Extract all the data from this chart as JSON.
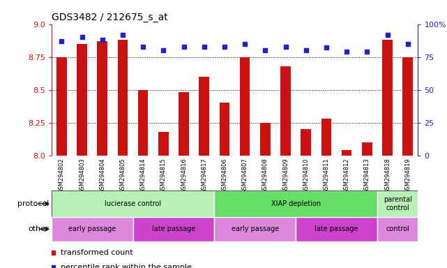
{
  "title": "GDS3482 / 212675_s_at",
  "samples": [
    "GSM294802",
    "GSM294803",
    "GSM294804",
    "GSM294805",
    "GSM294814",
    "GSM294815",
    "GSM294816",
    "GSM294817",
    "GSM294806",
    "GSM294807",
    "GSM294808",
    "GSM294809",
    "GSM294810",
    "GSM294811",
    "GSM294812",
    "GSM294813",
    "GSM294818",
    "GSM294819"
  ],
  "transformed_count": [
    8.75,
    8.85,
    8.87,
    8.88,
    8.5,
    8.18,
    8.48,
    8.6,
    8.4,
    8.75,
    8.25,
    8.68,
    8.2,
    8.28,
    8.04,
    8.1,
    8.88,
    8.75
  ],
  "percentile_rank": [
    87,
    90,
    88,
    92,
    83,
    80,
    83,
    83,
    83,
    85,
    80,
    83,
    80,
    82,
    79,
    79,
    92,
    85
  ],
  "ylim_left": [
    8.0,
    9.0
  ],
  "ylim_right": [
    0,
    100
  ],
  "yticks_left": [
    8.0,
    8.25,
    8.5,
    8.75,
    9.0
  ],
  "yticks_right": [
    0,
    25,
    50,
    75,
    100
  ],
  "grid_values": [
    8.25,
    8.5,
    8.75
  ],
  "protocol_groups": [
    {
      "label": "lucierase control",
      "start": 0,
      "end": 8,
      "color": "#b8f0b8"
    },
    {
      "label": "XIAP depletion",
      "start": 8,
      "end": 16,
      "color": "#66dd66"
    },
    {
      "label": "parental\ncontrol",
      "start": 16,
      "end": 18,
      "color": "#b8f0b8"
    }
  ],
  "other_groups": [
    {
      "label": "early passage",
      "start": 0,
      "end": 4,
      "color": "#dd88dd"
    },
    {
      "label": "late passage",
      "start": 4,
      "end": 8,
      "color": "#cc44cc"
    },
    {
      "label": "early passage",
      "start": 8,
      "end": 12,
      "color": "#dd88dd"
    },
    {
      "label": "late passage",
      "start": 12,
      "end": 16,
      "color": "#cc44cc"
    },
    {
      "label": "control",
      "start": 16,
      "end": 18,
      "color": "#dd88dd"
    }
  ],
  "bar_color": "#cc1111",
  "dot_color": "#2222cc",
  "title_color": "#000000",
  "left_axis_color": "#cc1111",
  "right_axis_color": "#2222cc",
  "bg_color": "#ffffff",
  "plot_bg_color": "#ffffff",
  "xtick_bg_color": "#d8d8d8",
  "legend_items": [
    {
      "label": "transformed count",
      "color": "#cc1111"
    },
    {
      "label": "percentile rank within the sample",
      "color": "#2222cc"
    }
  ]
}
